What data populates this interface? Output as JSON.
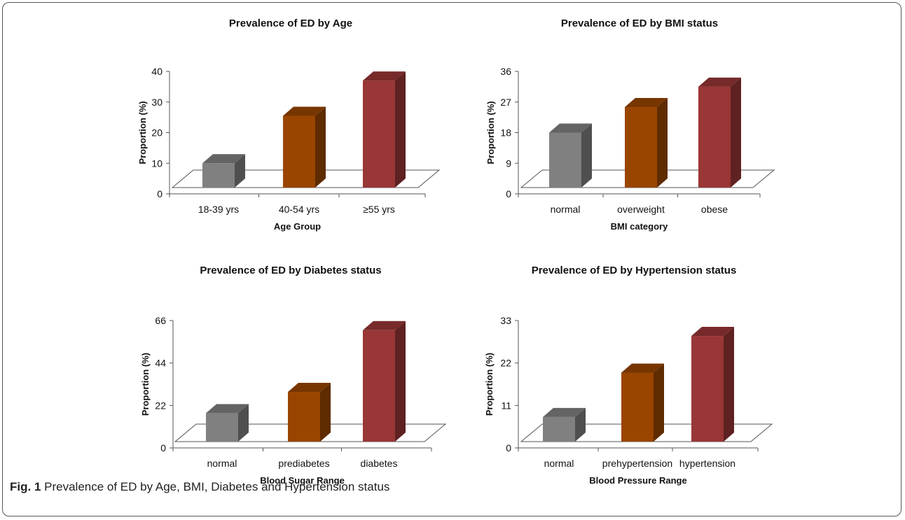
{
  "chart_data": [
    {
      "type": "bar",
      "title": "Prevalence of ED by Age",
      "xlabel": "Age Group",
      "ylabel": "Proportion (%)",
      "categories": [
        "18-39 yrs",
        "40-54 yrs",
        "≥55 yrs"
      ],
      "values": [
        10,
        25.5,
        37
      ],
      "ylim": [
        0,
        40
      ],
      "yticks": [
        0,
        10,
        20,
        30,
        40
      ],
      "colors": [
        "#808080",
        "#994500",
        "#993636"
      ],
      "grid": false
    },
    {
      "type": "bar",
      "title": "Prevalence of ED by BMI status",
      "xlabel": "BMI category",
      "ylabel": "Proportion (%)",
      "categories": [
        "normal",
        "overweight",
        "obese"
      ],
      "values": [
        18,
        25.5,
        31.5
      ],
      "ylim": [
        0,
        36
      ],
      "yticks": [
        0,
        9,
        18,
        27,
        36
      ],
      "colors": [
        "#808080",
        "#994500",
        "#993636"
      ],
      "grid": false
    },
    {
      "type": "bar",
      "title": "Prevalence of ED by Diabetes status",
      "xlabel": "Blood Sugar Range",
      "ylabel": "Proportion (%)",
      "categories": [
        "normal",
        "prediabetes",
        "diabetes"
      ],
      "values": [
        18,
        29,
        61
      ],
      "ylim": [
        0,
        66
      ],
      "yticks": [
        0,
        22,
        44,
        66
      ],
      "colors": [
        "#808080",
        "#994500",
        "#993636"
      ],
      "grid": false
    },
    {
      "type": "bar",
      "title": "Prevalence of ED by Hypertension status",
      "xlabel": "Blood Pressure Range",
      "ylabel": "Proportion (%)",
      "categories": [
        "normal",
        "prehypertension",
        "hypertension"
      ],
      "values": [
        8,
        19.5,
        29
      ],
      "ylim": [
        0,
        33
      ],
      "yticks": [
        0,
        11,
        22,
        33
      ],
      "colors": [
        "#808080",
        "#994500",
        "#993636"
      ],
      "grid": false
    }
  ],
  "caption": {
    "label": "Fig. 1",
    "text": " Prevalence of ED by Age, BMI, Diabetes and Hypertension status"
  }
}
